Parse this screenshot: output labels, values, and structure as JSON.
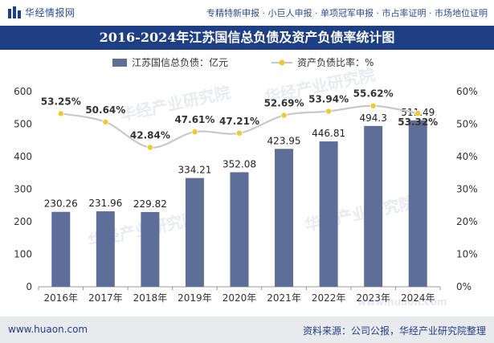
{
  "header": {
    "site_name": "华经情报网",
    "services": "专精特新申报 · 小巨人申报 · 单项冠军申报 · 市占率证明 · 市场地位证明"
  },
  "title": "2016-2024年江苏国信总负债及资产负债率统计图",
  "footer": {
    "website": "www.huaon.com",
    "source": "资料来源：公司公报，华经产业研究院整理"
  },
  "watermarks": [
    "华经产业研究院",
    "华经产业研究院",
    "华经产业研究院",
    "华经产业研究院",
    "www.huaon.com"
  ],
  "colors": {
    "bar": "#5d6e99",
    "line": "#c8c8c8",
    "marker": "#f2c82f",
    "header": "#1f3f84"
  },
  "chart_data": {
    "type": "bar",
    "title": "2016-2024年江苏国信总负债及资产负债率统计图",
    "categories": [
      "2016年",
      "2017年",
      "2018年",
      "2019年",
      "2020年",
      "2021年",
      "2022年",
      "2023年",
      "2024年"
    ],
    "series": [
      {
        "name": "江苏国信总负债：亿元",
        "type": "bar",
        "axis": "left",
        "values": [
          230.26,
          231.96,
          229.82,
          334.21,
          352.08,
          423.95,
          446.81,
          494.3,
          511.49
        ],
        "labels": [
          "230.26",
          "231.96",
          "229.82",
          "334.21",
          "352.08",
          "423.95",
          "446.81",
          "494.3",
          "511.49"
        ]
      },
      {
        "name": "资产负债比率：%",
        "type": "line",
        "axis": "right",
        "values": [
          53.25,
          50.64,
          42.84,
          47.61,
          47.21,
          52.69,
          53.94,
          55.62,
          53.32
        ],
        "labels": [
          "53.25%",
          "50.64%",
          "42.84%",
          "47.61%",
          "47.21%",
          "52.69%",
          "53.94%",
          "55.62%",
          "53.32%"
        ]
      }
    ],
    "y_left": {
      "min": 0,
      "max": 600,
      "ticks": [
        "0",
        "100",
        "200",
        "300",
        "400",
        "500",
        "600"
      ]
    },
    "y_right": {
      "min": 0,
      "max": 60,
      "ticks": [
        "0%",
        "10%",
        "20%",
        "30%",
        "40%",
        "50%",
        "60%"
      ]
    },
    "legend_position": "top-center",
    "grid": false
  }
}
